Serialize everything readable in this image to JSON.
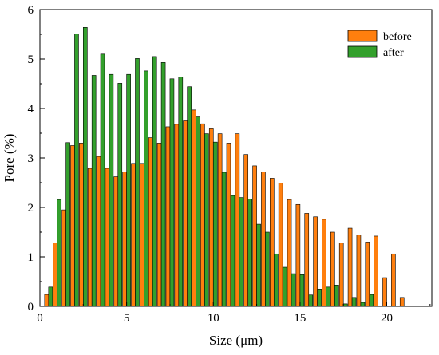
{
  "chart_data": {
    "type": "bar",
    "xlabel": "Size (μm)",
    "ylabel": "Pore (%)",
    "xlim": [
      0,
      22.6
    ],
    "ylim": [
      0,
      6
    ],
    "xticks": [
      0,
      5,
      10,
      15,
      20
    ],
    "yticks": [
      0,
      1,
      2,
      3,
      4,
      5,
      6
    ],
    "legend_position": "top-right",
    "colors": {
      "before": "#ff7f0e",
      "after": "#33a02c"
    },
    "x": [
      0.5,
      1.0,
      1.5,
      2.0,
      2.5,
      3.0,
      3.5,
      4.0,
      4.5,
      5.0,
      5.5,
      6.0,
      6.5,
      7.0,
      7.5,
      8.0,
      8.5,
      9.0,
      9.5,
      10.0,
      10.5,
      11.0,
      11.5,
      12.0,
      12.5,
      13.0,
      13.5,
      14.0,
      14.5,
      15.0,
      15.5,
      16.0,
      16.5,
      17.0,
      17.5,
      18.0,
      18.5,
      19.0,
      19.5,
      20.0,
      20.5,
      21.0,
      21.5,
      22.0,
      22.5
    ],
    "series": [
      {
        "name": "before",
        "values": [
          0.24,
          1.28,
          1.95,
          3.25,
          3.3,
          2.79,
          3.03,
          2.79,
          2.62,
          2.72,
          2.89,
          2.89,
          3.41,
          3.3,
          3.63,
          3.68,
          3.75,
          3.97,
          3.69,
          3.59,
          3.49,
          3.3,
          3.49,
          3.07,
          2.84,
          2.72,
          2.59,
          2.49,
          2.16,
          2.06,
          1.88,
          1.81,
          1.76,
          1.5,
          1.28,
          1.58,
          1.44,
          1.3,
          1.42,
          0.58,
          1.06,
          0.18,
          0,
          0,
          0
        ]
      },
      {
        "name": "after",
        "values": [
          0.39,
          2.16,
          3.31,
          5.51,
          5.64,
          4.67,
          5.1,
          4.69,
          4.51,
          4.69,
          5.01,
          4.76,
          5.05,
          4.93,
          4.6,
          4.64,
          4.44,
          3.83,
          3.49,
          3.32,
          2.71,
          2.24,
          2.2,
          2.17,
          1.66,
          1.5,
          1.06,
          0.79,
          0.66,
          0.64,
          0.23,
          0.35,
          0.39,
          0.43,
          0.05,
          0.18,
          0.08,
          0.24,
          0,
          0,
          0,
          0,
          0,
          0,
          0
        ]
      }
    ]
  }
}
